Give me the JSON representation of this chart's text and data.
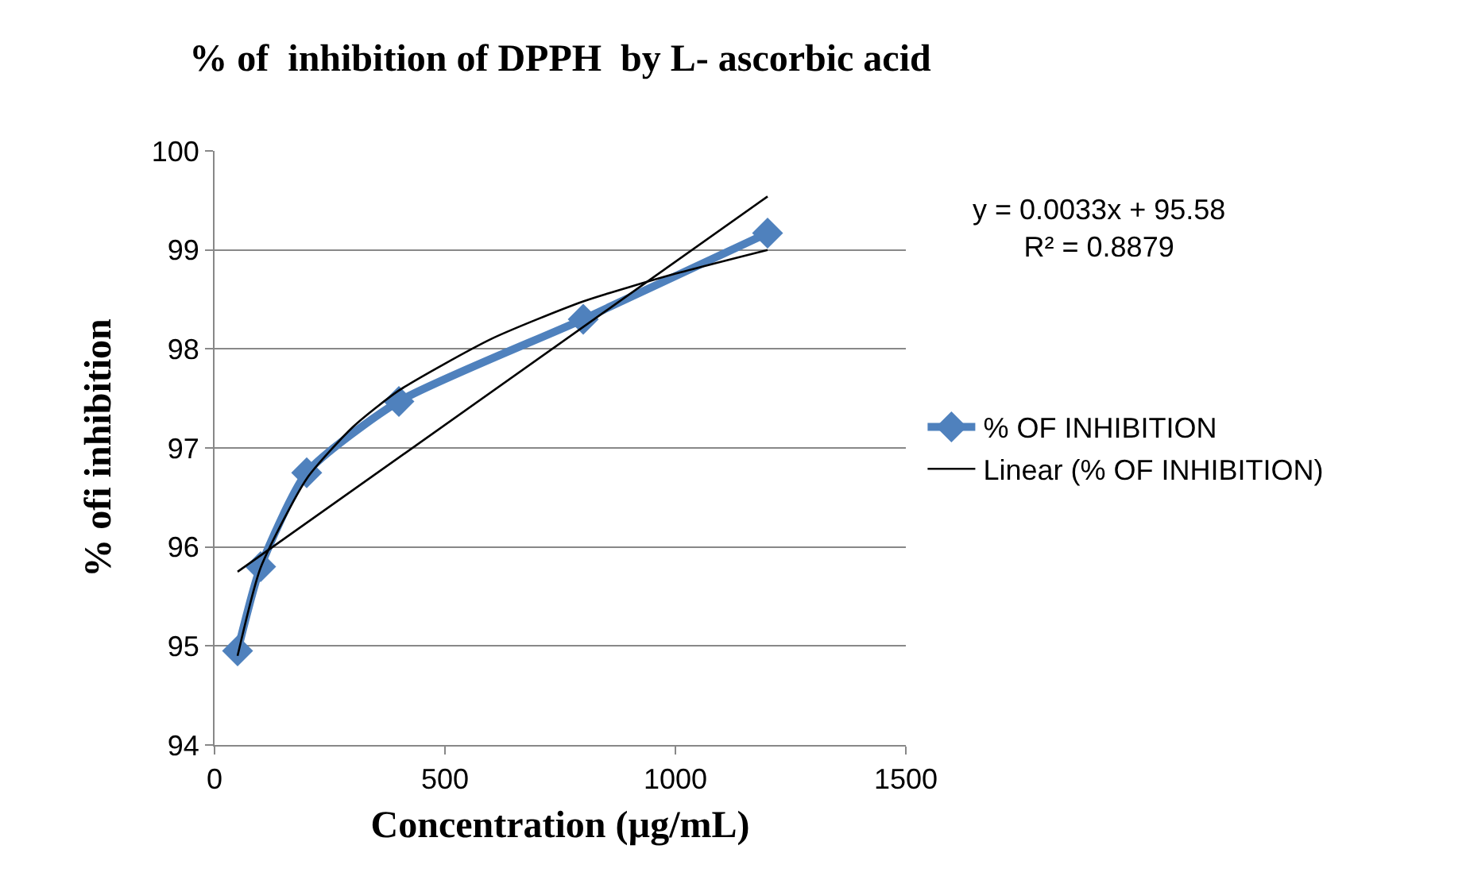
{
  "chart_data": {
    "type": "line",
    "title": "% of  inhibition of DPPH  by L- ascorbic acid",
    "xlabel": "Concentration (µg/mL)",
    "ylabel": "% ofi inhibition",
    "xlim": [
      0,
      1500
    ],
    "xticks": [
      0,
      500,
      1000,
      1500
    ],
    "ylim": [
      94,
      100
    ],
    "yticks": [
      94,
      95,
      96,
      97,
      98,
      99,
      100
    ],
    "grid": "y",
    "legend": "right",
    "marker": "diamond",
    "line_style": "solid",
    "annotations": [
      "y = 0.0033x + 95.58\nR² = 0.8879"
    ],
    "series": [
      {
        "name": "% OF INHIBITION",
        "color": "#4f81bd",
        "x": [
          50,
          100,
          200,
          400,
          800,
          1200
        ],
        "values": [
          94.95,
          95.8,
          96.75,
          97.47,
          98.3,
          99.17
        ]
      },
      {
        "name": "Linear (% OF INHIBITION)",
        "type": "line",
        "marker": "none",
        "color": "#000000",
        "x": [
          50,
          1200
        ],
        "values": [
          95.75,
          99.54
        ]
      },
      {
        "type": "line",
        "marker": "none",
        "color": "#000000",
        "x": [
          50,
          100,
          200,
          300,
          400,
          600,
          800,
          1000,
          1200
        ],
        "values": [
          94.9,
          95.79,
          96.69,
          97.21,
          97.58,
          98.1,
          98.48,
          98.76,
          99.0
        ]
      }
    ]
  }
}
